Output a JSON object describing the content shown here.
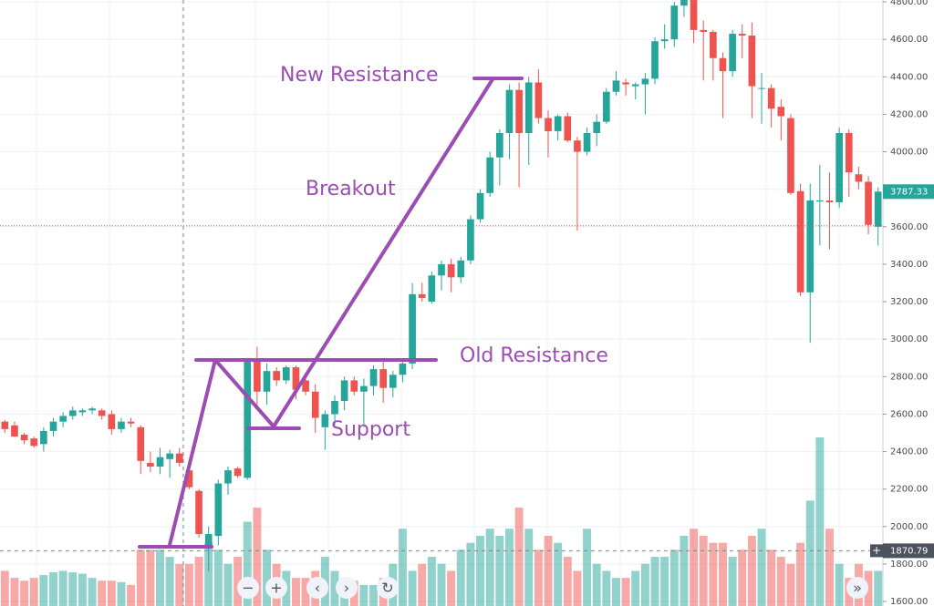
{
  "chart_data": {
    "type": "candlestick",
    "annotations": [
      "New Resistance",
      "Breakout",
      "Old Resistance",
      "Support"
    ],
    "open": [
      2560,
      2540,
      2490,
      2470,
      2440,
      2510,
      2560,
      2590,
      2610,
      2620,
      2620,
      2600,
      2520,
      2560,
      2530,
      2340,
      2320,
      2360,
      2390,
      2300,
      2190,
      1900,
      1950,
      2230,
      2310,
      2260,
      2880,
      2720,
      2830,
      2780,
      2850,
      2780,
      2720,
      2530,
      2600,
      2670,
      2780,
      2720,
      2750,
      2840,
      2740,
      2810,
      2870,
      3240,
      3200,
      3340,
      3400,
      3330,
      3420,
      3640,
      3780,
      3970,
      4100,
      4330,
      4100,
      4370,
      4180,
      4110,
      4190,
      4060,
      4000,
      4100,
      4160,
      4320,
      4370,
      4350,
      4360,
      4390,
      4590,
      4600,
      4780,
      4820,
      4650,
      4640,
      4500,
      4430,
      4630,
      4620,
      4340,
      4340,
      4240,
      4180,
      3790,
      3250,
      3740,
      3740,
      3730,
      4100,
      3880,
      3840,
      3600
    ],
    "high": [
      2570,
      2560,
      2500,
      2480,
      2530,
      2580,
      2610,
      2640,
      2630,
      2640,
      2630,
      2620,
      2580,
      2580,
      2540,
      2400,
      2420,
      2410,
      2420,
      2330,
      2200,
      2000,
      2250,
      2320,
      2320,
      2900,
      2960,
      2870,
      2850,
      2860,
      2860,
      2800,
      2760,
      2620,
      2700,
      2800,
      2800,
      2790,
      2860,
      2890,
      2830,
      2890,
      3300,
      3300,
      3360,
      3420,
      3430,
      3440,
      3660,
      3800,
      4000,
      4120,
      4360,
      4370,
      4400,
      4440,
      4220,
      4200,
      4210,
      4080,
      4130,
      4200,
      4340,
      4430,
      4390,
      4370,
      4420,
      4610,
      4680,
      4800,
      4860,
      4860,
      4700,
      4650,
      4530,
      4650,
      4680,
      4690,
      4420,
      4360,
      4280,
      4200,
      3830,
      3830,
      3930,
      3890,
      4130,
      4120,
      3920,
      3870,
      3810
    ],
    "low": [
      2500,
      2480,
      2440,
      2420,
      2400,
      2480,
      2530,
      2570,
      2590,
      2600,
      2570,
      2490,
      2500,
      2530,
      2280,
      2290,
      2280,
      2260,
      2320,
      2200,
      1940,
      1760,
      1900,
      2170,
      2260,
      2250,
      2620,
      2650,
      2750,
      2760,
      2680,
      2700,
      2500,
      2410,
      2540,
      2620,
      2700,
      2530,
      2700,
      2660,
      2690,
      2770,
      2840,
      3200,
      3190,
      3260,
      3250,
      3300,
      3400,
      3620,
      3760,
      3820,
      3960,
      3810,
      3930,
      4150,
      3970,
      4060,
      4050,
      3580,
      3980,
      4030,
      4150,
      4300,
      4300,
      4280,
      4200,
      4360,
      4550,
      4560,
      4720,
      4580,
      4380,
      4380,
      4180,
      4400,
      4500,
      4180,
      4150,
      4130,
      4060,
      3770,
      3230,
      2980,
      3500,
      3480,
      3700,
      3760,
      3800,
      3560,
      3500
    ],
    "close": [
      2520,
      2480,
      2460,
      2430,
      2510,
      2560,
      2590,
      2620,
      2620,
      2630,
      2590,
      2520,
      2560,
      2550,
      2350,
      2320,
      2370,
      2390,
      2340,
      2210,
      1960,
      1960,
      2230,
      2300,
      2270,
      2880,
      2720,
      2830,
      2780,
      2850,
      2730,
      2720,
      2580,
      2600,
      2670,
      2780,
      2720,
      2750,
      2840,
      2740,
      2810,
      2870,
      3240,
      3220,
      3340,
      3400,
      3330,
      3420,
      3640,
      3780,
      3970,
      4100,
      4330,
      4100,
      4370,
      4180,
      4110,
      4190,
      4060,
      4000,
      4100,
      4160,
      4320,
      4380,
      4360,
      4360,
      4390,
      4590,
      4600,
      4780,
      4820,
      4650,
      4640,
      4500,
      4430,
      4630,
      4620,
      4350,
      4340,
      4230,
      4190,
      3780,
      3250,
      3740,
      3740,
      3730,
      4100,
      3890,
      3840,
      3610,
      3787.33
    ],
    "volume": [
      25,
      20,
      18,
      20,
      22,
      24,
      25,
      24,
      23,
      20,
      18,
      18,
      17,
      15,
      40,
      40,
      40,
      35,
      30,
      30,
      35,
      45,
      40,
      30,
      35,
      60,
      70,
      40,
      30,
      25,
      20,
      20,
      25,
      35,
      25,
      20,
      18,
      15,
      15,
      20,
      30,
      55,
      25,
      30,
      35,
      30,
      25,
      40,
      45,
      50,
      55,
      50,
      55,
      70,
      55,
      40,
      50,
      45,
      35,
      25,
      55,
      30,
      25,
      20,
      20,
      25,
      30,
      35,
      35,
      40,
      50,
      55,
      50,
      45,
      45,
      35,
      40,
      50,
      55,
      40,
      35,
      30,
      45,
      75,
      120,
      55,
      30,
      20,
      30,
      25,
      25
    ],
    "up_color": "#26a69a",
    "down_color": "#ef5350",
    "last_price": 3787.33,
    "crosshair_price": 1870.79,
    "reference_line": 3605,
    "ylim": [
      1576,
      4810
    ],
    "yticks": [
      {
        "value": 1600,
        "label": "1600.00"
      },
      {
        "value": 1800,
        "label": "1800.00"
      },
      {
        "value": 2000,
        "label": "2000.00"
      },
      {
        "value": 2200,
        "label": "2200.00"
      },
      {
        "value": 2400,
        "label": "2400.00"
      },
      {
        "value": 2600,
        "label": "2600.00"
      },
      {
        "value": 2800,
        "label": "2800.00"
      },
      {
        "value": 3000,
        "label": "3000.00"
      },
      {
        "value": 3200,
        "label": "3200.00"
      },
      {
        "value": 3400,
        "label": "3400.00"
      },
      {
        "value": 3600,
        "label": "3600.00"
      },
      {
        "value": 3800,
        "label": "3800.00"
      },
      {
        "value": 4000,
        "label": "4000.00"
      },
      {
        "value": 4200,
        "label": "4200.00"
      },
      {
        "value": 4400,
        "label": "4400.00"
      },
      {
        "value": 4600,
        "label": "4600.00"
      },
      {
        "value": 4800,
        "label": "4800.00"
      }
    ],
    "grid": true
  }
}
